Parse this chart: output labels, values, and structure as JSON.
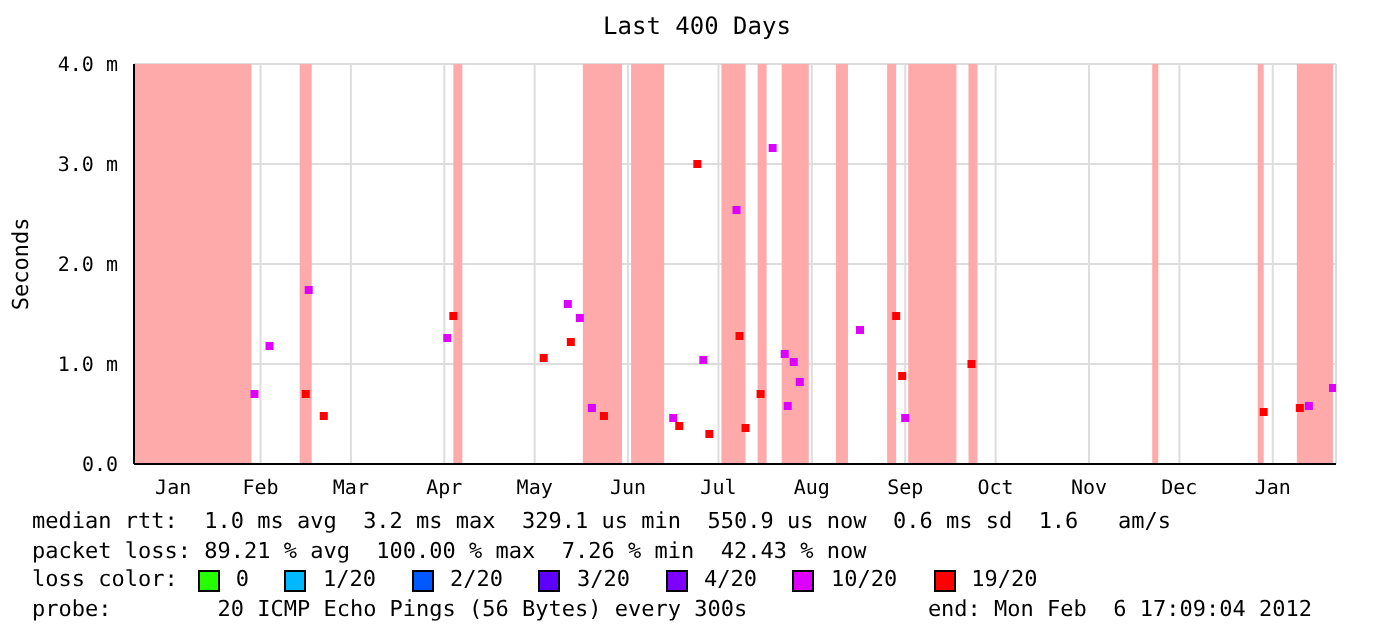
{
  "chart_data": {
    "type": "scatter",
    "title": "Last 400 Days",
    "ylabel": "Seconds",
    "legend_title": "loss color:",
    "legend": "bottom",
    "marker": "square",
    "grid": true,
    "xlim": [
      "2011-01-03",
      "2012-02-06"
    ],
    "xticks": [
      {
        "value": "2011-01-16",
        "label": "Jan"
      },
      {
        "value": "2011-02-14",
        "label": "Feb"
      },
      {
        "value": "2011-03-16",
        "label": "Mar"
      },
      {
        "value": "2011-04-16",
        "label": "Apr"
      },
      {
        "value": "2011-05-16",
        "label": "May"
      },
      {
        "value": "2011-06-16",
        "label": "Jun"
      },
      {
        "value": "2011-07-16",
        "label": "Jul"
      },
      {
        "value": "2011-08-16",
        "label": "Aug"
      },
      {
        "value": "2011-09-16",
        "label": "Sep"
      },
      {
        "value": "2011-10-16",
        "label": "Oct"
      },
      {
        "value": "2011-11-16",
        "label": "Nov"
      },
      {
        "value": "2011-12-16",
        "label": "Dec"
      },
      {
        "value": "2012-01-16",
        "label": "Jan"
      }
    ],
    "ylim": [
      0,
      4
    ],
    "yticks": [
      {
        "value": 0,
        "label": "0.0"
      },
      {
        "value": 1,
        "label": "1.0 m"
      },
      {
        "value": 2,
        "label": "2.0 m"
      },
      {
        "value": 3,
        "label": "3.0 m"
      },
      {
        "value": 4,
        "label": "4.0 m"
      }
    ],
    "bands": [
      {
        "axis": "x",
        "from": "2011-01-03",
        "to": "2011-02-11",
        "color": "#ffaaaa"
      },
      {
        "axis": "x",
        "from": "2011-02-27",
        "to": "2011-03-03",
        "color": "#ffaaaa"
      },
      {
        "axis": "x",
        "from": "2011-04-19",
        "to": "2011-04-22",
        "color": "#ffaaaa"
      },
      {
        "axis": "x",
        "from": "2011-06-01",
        "to": "2011-06-14",
        "color": "#ffaaaa"
      },
      {
        "axis": "x",
        "from": "2011-06-17",
        "to": "2011-06-28",
        "color": "#ffaaaa"
      },
      {
        "axis": "x",
        "from": "2011-07-17",
        "to": "2011-07-25",
        "color": "#ffaaaa"
      },
      {
        "axis": "x",
        "from": "2011-07-29",
        "to": "2011-08-01",
        "color": "#ffaaaa"
      },
      {
        "axis": "x",
        "from": "2011-08-06",
        "to": "2011-08-15",
        "color": "#ffaaaa"
      },
      {
        "axis": "x",
        "from": "2011-08-24",
        "to": "2011-08-28",
        "color": "#ffaaaa"
      },
      {
        "axis": "x",
        "from": "2011-09-10",
        "to": "2011-09-13",
        "color": "#ffaaaa"
      },
      {
        "axis": "x",
        "from": "2011-09-17",
        "to": "2011-10-03",
        "color": "#ffaaaa"
      },
      {
        "axis": "x",
        "from": "2011-10-07",
        "to": "2011-10-10",
        "color": "#ffaaaa"
      },
      {
        "axis": "x",
        "from": "2011-12-07",
        "to": "2011-12-09",
        "color": "#ffaaaa"
      },
      {
        "axis": "x",
        "from": "2012-01-11",
        "to": "2012-01-13",
        "color": "#ffaaaa"
      },
      {
        "axis": "x",
        "from": "2012-01-24",
        "to": "2012-02-05",
        "color": "#ffaaaa"
      }
    ],
    "series": [
      {
        "name": "0",
        "color": "#26ff00"
      },
      {
        "name": "1/20",
        "color": "#00b8ff"
      },
      {
        "name": "2/20",
        "color": "#0059ff"
      },
      {
        "name": "3/20",
        "color": "#5e00ff"
      },
      {
        "name": "4/20",
        "color": "#7e00ff"
      },
      {
        "name": "10/20",
        "color": "#dd00ff",
        "x": [
          "2011-02-12",
          "2011-02-17",
          "2011-03-02",
          "2011-04-17",
          "2011-05-27",
          "2011-05-31",
          "2011-06-04",
          "2011-07-01",
          "2011-07-11",
          "2011-07-22",
          "2011-08-03",
          "2011-08-07",
          "2011-08-08",
          "2011-08-10",
          "2011-08-12",
          "2011-09-01",
          "2011-09-16",
          "2012-01-28",
          "2012-02-05"
        ],
        "values": [
          0.7,
          1.18,
          1.74,
          1.26,
          1.6,
          1.46,
          0.56,
          0.46,
          1.04,
          2.54,
          3.16,
          1.1,
          0.58,
          1.02,
          0.82,
          1.34,
          0.46,
          0.58,
          0.76
        ]
      },
      {
        "name": "19/20",
        "color": "#ff0000",
        "x": [
          "2011-03-01",
          "2011-03-07",
          "2011-04-19",
          "2011-05-19",
          "2011-05-28",
          "2011-06-08",
          "2011-07-03",
          "2011-07-09",
          "2011-07-13",
          "2011-07-23",
          "2011-07-25",
          "2011-07-30",
          "2011-09-13",
          "2011-09-15",
          "2011-10-08",
          "2012-01-13",
          "2012-01-25"
        ],
        "values": [
          0.7,
          0.48,
          1.48,
          1.06,
          1.22,
          0.48,
          0.38,
          3.0,
          0.3,
          1.28,
          0.36,
          0.7,
          1.48,
          0.88,
          1.0,
          0.52,
          0.56
        ]
      }
    ],
    "annotations": [
      "median rtt:  1.0 ms avg  3.2 ms max  329.1 us min  550.9 us now  0.6 ms sd  1.6   am/s",
      "packet loss: 89.21 % avg  100.00 % max  7.26 % min  42.43 % now",
      "probe:        20 ICMP Echo Pings (56 Bytes) every 300s",
      "end: Mon Feb  6 17:09:04 2012"
    ]
  }
}
